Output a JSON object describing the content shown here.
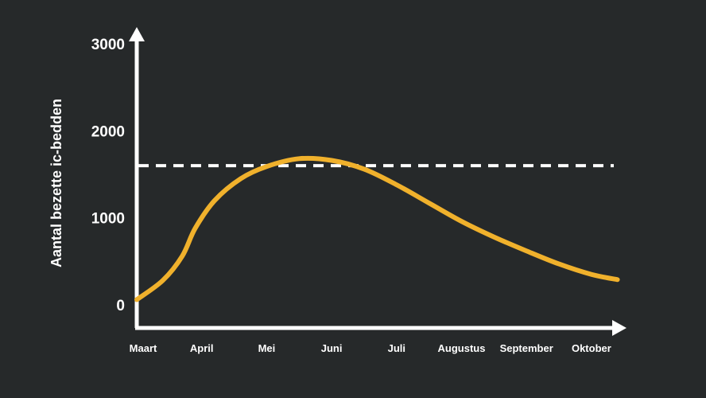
{
  "chart_data": {
    "type": "line",
    "title": "",
    "xlabel": "",
    "ylabel": "Aantal bezette ic-bedden",
    "ylim": [
      0,
      3000
    ],
    "yticks": [
      0,
      1000,
      2000,
      3000
    ],
    "yticks_labels": [
      "0",
      "1000",
      "2000",
      "3000"
    ],
    "categories": [
      "Maart",
      "April",
      "Mei",
      "Juni",
      "Juli",
      "Augustus",
      "September",
      "Oktober"
    ],
    "x_positions": [
      0,
      1,
      2,
      3,
      4,
      5,
      6,
      7
    ],
    "grid": false,
    "legend": "none",
    "series": [
      {
        "color": "#f0b12c",
        "points": [
          [
            0.0,
            60
          ],
          [
            0.4,
            280
          ],
          [
            0.7,
            560
          ],
          [
            0.9,
            880
          ],
          [
            1.2,
            1200
          ],
          [
            1.6,
            1450
          ],
          [
            2.0,
            1590
          ],
          [
            2.5,
            1680
          ],
          [
            3.0,
            1660
          ],
          [
            3.5,
            1560
          ],
          [
            4.0,
            1380
          ],
          [
            4.5,
            1170
          ],
          [
            5.0,
            960
          ],
          [
            5.5,
            780
          ],
          [
            6.0,
            620
          ],
          [
            6.5,
            470
          ],
          [
            7.0,
            350
          ],
          [
            7.4,
            290
          ]
        ]
      }
    ],
    "reference_line": {
      "y": 1600,
      "style": "dashed",
      "color": "#ffffff"
    }
  },
  "colors": {
    "background": "#26292a",
    "axis": "#ffffff",
    "curve": "#f0b12c"
  }
}
